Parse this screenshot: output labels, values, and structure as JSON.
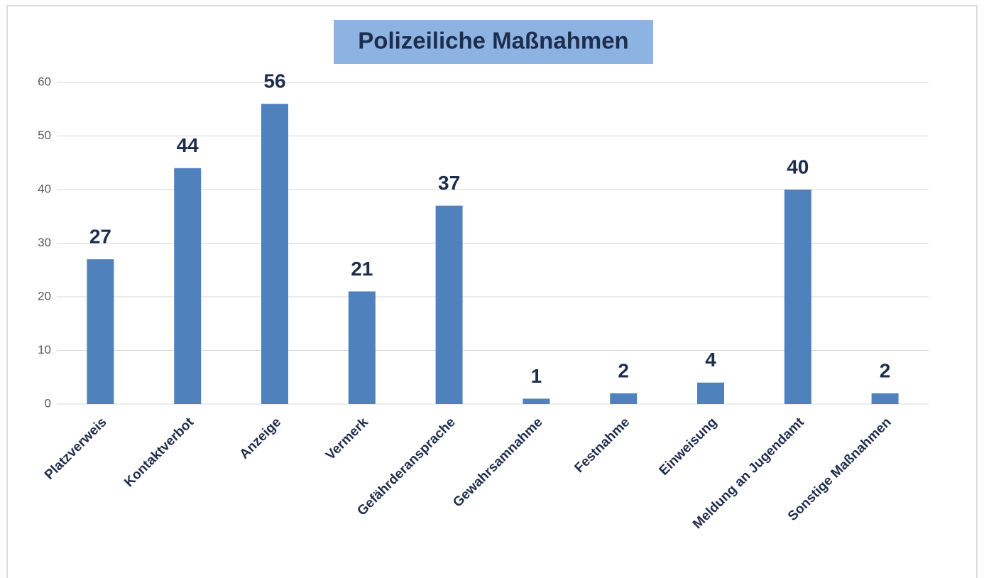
{
  "chart_data": {
    "type": "bar",
    "title": "Polizeiliche Maßnahmen",
    "categories": [
      "Platzverweis",
      "Kontaktverbot",
      "Anzeige",
      "Vermerk",
      "Gefährderansprache",
      "Gewahrsamnahme",
      "Festnahme",
      "Einweisung",
      "Meldung an Jugendamt",
      "Sonstige Maßnahmen"
    ],
    "values": [
      27,
      44,
      56,
      21,
      37,
      1,
      2,
      4,
      40,
      2
    ],
    "color": "#4f81bd",
    "ylim": [
      0,
      60
    ],
    "yticks": [
      0,
      10,
      20,
      30,
      40,
      50,
      60
    ],
    "grid": true
  }
}
